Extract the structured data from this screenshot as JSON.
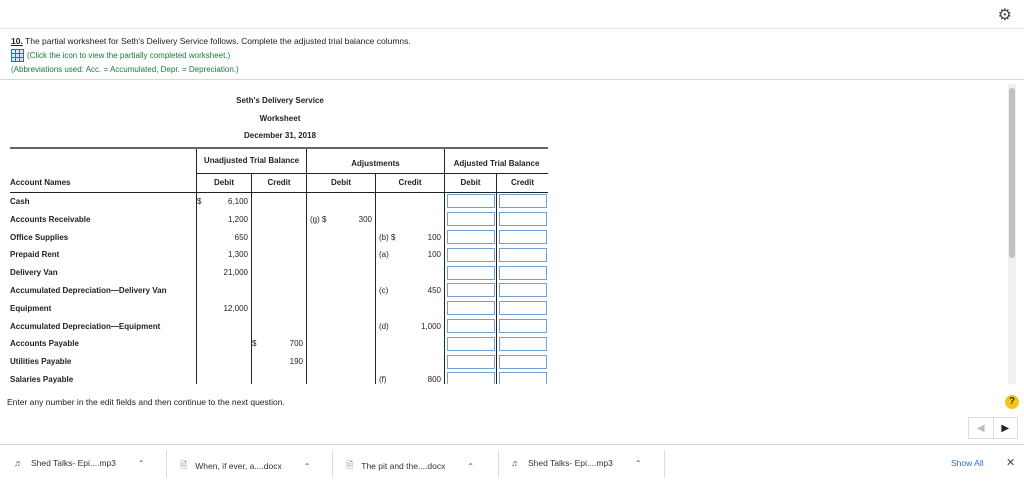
{
  "question": {
    "number": "10.",
    "text": " The partial worksheet for Seth's Delivery Service follows. Complete the adjusted trial balance columns.",
    "link": "(Click the icon to view the partially completed worksheet.)",
    "abbrev": "(Abbreviations used: Acc. = Accumulated, Depr. = Depreciation.)"
  },
  "worksheet": {
    "company": "Seth's Delivery Service",
    "title": "Worksheet",
    "date": "December 31, 2018",
    "groups": {
      "unadjusted": "Unadjusted Trial Balance",
      "adjustments": "Adjustments",
      "adjusted": "Adjusted Trial Balance"
    },
    "cols": {
      "name": "Account Names",
      "debit": "Debit",
      "credit": "Credit"
    },
    "rows": [
      {
        "name": "Cash",
        "ud": "6,100",
        "ud_sym": "$",
        "uc": "",
        "ad_l": "",
        "ad_v": "",
        "ac_l": "",
        "ac_v": ""
      },
      {
        "name": "Accounts Receivable",
        "ud": "1,200",
        "ud_sym": "",
        "uc": "",
        "ad_l": "(g)   $",
        "ad_v": "300",
        "ac_l": "",
        "ac_v": ""
      },
      {
        "name": "Office Supplies",
        "ud": "650",
        "ud_sym": "",
        "uc": "",
        "ad_l": "",
        "ad_v": "",
        "ac_l": "(b)     $",
        "ac_v": "100"
      },
      {
        "name": "Prepaid Rent",
        "ud": "1,300",
        "ud_sym": "",
        "uc": "",
        "ad_l": "",
        "ad_v": "",
        "ac_l": "(a)",
        "ac_v": "100"
      },
      {
        "name": "Delivery Van",
        "ud": "21,000",
        "ud_sym": "",
        "uc": "",
        "ad_l": "",
        "ad_v": "",
        "ac_l": "",
        "ac_v": ""
      },
      {
        "name": "Accumulated Depreciation—Delivery Van",
        "ud": "",
        "ud_sym": "",
        "uc": "",
        "ad_l": "",
        "ad_v": "",
        "ac_l": "(c)",
        "ac_v": "450"
      },
      {
        "name": "Equipment",
        "ud": "12,000",
        "ud_sym": "",
        "uc": "",
        "ad_l": "",
        "ad_v": "",
        "ac_l": "",
        "ac_v": ""
      },
      {
        "name": "Accumulated Depreciation—Equipment",
        "ud": "",
        "ud_sym": "",
        "uc": "",
        "ad_l": "",
        "ad_v": "",
        "ac_l": "(d)",
        "ac_v": "1,000"
      },
      {
        "name": "Accounts Payable",
        "ud": "",
        "ud_sym": "",
        "uc": "700",
        "uc_sym": "$",
        "ad_l": "",
        "ad_v": "",
        "ac_l": "",
        "ac_v": ""
      },
      {
        "name": "Utilities Payable",
        "ud": "",
        "ud_sym": "",
        "uc": "190",
        "uc_sym": "",
        "ad_l": "",
        "ad_v": "",
        "ac_l": "",
        "ac_v": ""
      },
      {
        "name": "Salaries Payable",
        "ud": "",
        "ud_sym": "",
        "uc": "",
        "ad_l": "",
        "ad_v": "",
        "ac_l": "(f)",
        "ac_v": "800"
      }
    ]
  },
  "instruction": "Enter any number in the edit fields and then continue to the next question.",
  "help": "?",
  "downloads": [
    {
      "name": "Shed Talks- Epi....mp3"
    },
    {
      "name": "When, if ever, a....docx"
    },
    {
      "name": "The pit and the....docx"
    },
    {
      "name": "Shed Talks- Epi....mp3"
    }
  ],
  "show_all": "Show All",
  "icons": {
    "gear": "gear-icon",
    "close": "close-icon",
    "grid": "table-icon"
  }
}
